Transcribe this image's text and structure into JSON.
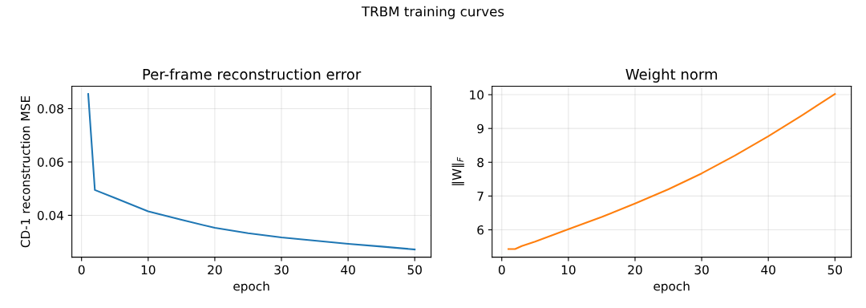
{
  "chart_data": [
    {
      "type": "line",
      "title": "Per-frame reconstruction error",
      "xlabel": "epoch",
      "ylabel": "CD-1 reconstruction MSE",
      "annotations": [
        "TRBM training curves"
      ],
      "series": [
        {
          "color": "#1f77b4",
          "x": [
            1,
            2,
            5,
            10,
            15,
            20,
            25,
            30,
            35,
            40,
            45,
            50
          ],
          "values": [
            0.0855,
            0.0495,
            0.0465,
            0.0415,
            0.0383,
            0.0353,
            0.0333,
            0.0317,
            0.0305,
            0.0293,
            0.0283,
            0.0272
          ]
        }
      ],
      "xlim": [
        -1.45,
        52.45
      ],
      "xticks": [
        0,
        10,
        20,
        30,
        40,
        50
      ],
      "ylim": [
        0.0243,
        0.0884
      ],
      "yticks": [
        0.04,
        0.06,
        0.08
      ],
      "grid": true
    },
    {
      "type": "line",
      "title": "Weight norm",
      "xlabel": "epoch",
      "ylabel": "‖W‖$_{F}$",
      "series": [
        {
          "color": "#ff7f0e",
          "x": [
            1,
            2,
            3,
            5,
            10,
            15,
            20,
            25,
            30,
            35,
            40,
            45,
            50
          ],
          "values": [
            5.43,
            5.43,
            5.52,
            5.65,
            6.02,
            6.38,
            6.78,
            7.2,
            7.67,
            8.2,
            8.77,
            9.38,
            10.02
          ]
        }
      ],
      "xlim": [
        -1.45,
        52.45
      ],
      "xticks": [
        0,
        10,
        20,
        30,
        40,
        50
      ],
      "ylim": [
        5.19,
        10.25
      ],
      "yticks": [
        6,
        7,
        8,
        9,
        10
      ],
      "grid": true
    }
  ]
}
